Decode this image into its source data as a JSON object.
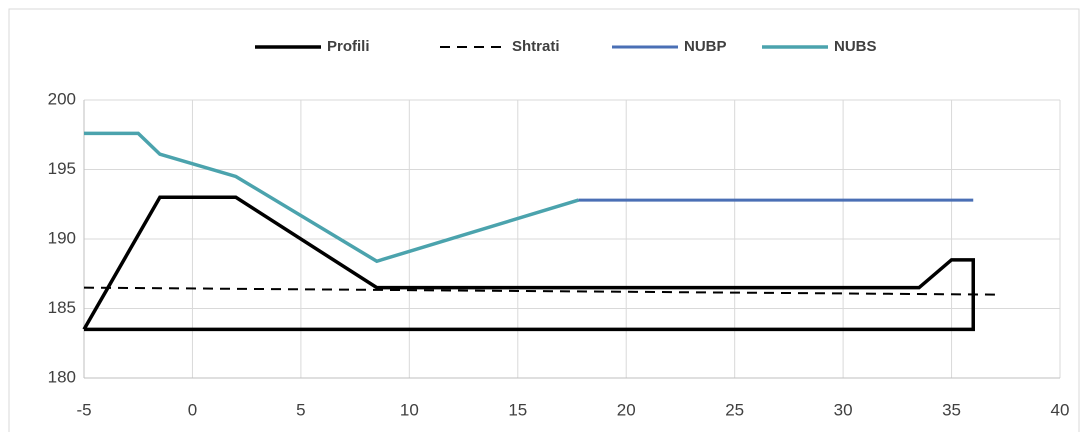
{
  "chart_data": {
    "type": "line",
    "series": [
      {
        "name": "Profili",
        "color": "#000000",
        "width": 3.5,
        "dash": false,
        "x": [
          -5,
          -1.5,
          2,
          8.5,
          33.5,
          35,
          36,
          36,
          -5
        ],
        "values": [
          183.5,
          193,
          193,
          186.5,
          186.5,
          188.5,
          188.5,
          183.5,
          183.5
        ]
      },
      {
        "name": "Shtrati",
        "color": "#000000",
        "width": 2,
        "dash": true,
        "x": [
          -5,
          37
        ],
        "values": [
          186.5,
          186
        ]
      },
      {
        "name": "NUBP",
        "color": "#4a6fb5",
        "width": 3,
        "dash": false,
        "x": [
          17.8,
          36
        ],
        "values": [
          192.8,
          192.8
        ]
      },
      {
        "name": "NUBS",
        "color": "#4ba3ad",
        "width": 3.5,
        "dash": false,
        "x": [
          -5,
          -2.5,
          -1.5,
          2,
          8.5,
          17.8
        ],
        "values": [
          197.6,
          197.6,
          196.1,
          194.5,
          188.4,
          192.8
        ]
      }
    ],
    "xlim": [
      -5,
      40
    ],
    "xticks": [
      -5,
      0,
      5,
      10,
      15,
      20,
      25,
      30,
      35,
      40
    ],
    "ylim": [
      180,
      200
    ],
    "yticks": [
      180,
      185,
      190,
      195,
      200
    ],
    "grid": true,
    "legend": "top"
  }
}
